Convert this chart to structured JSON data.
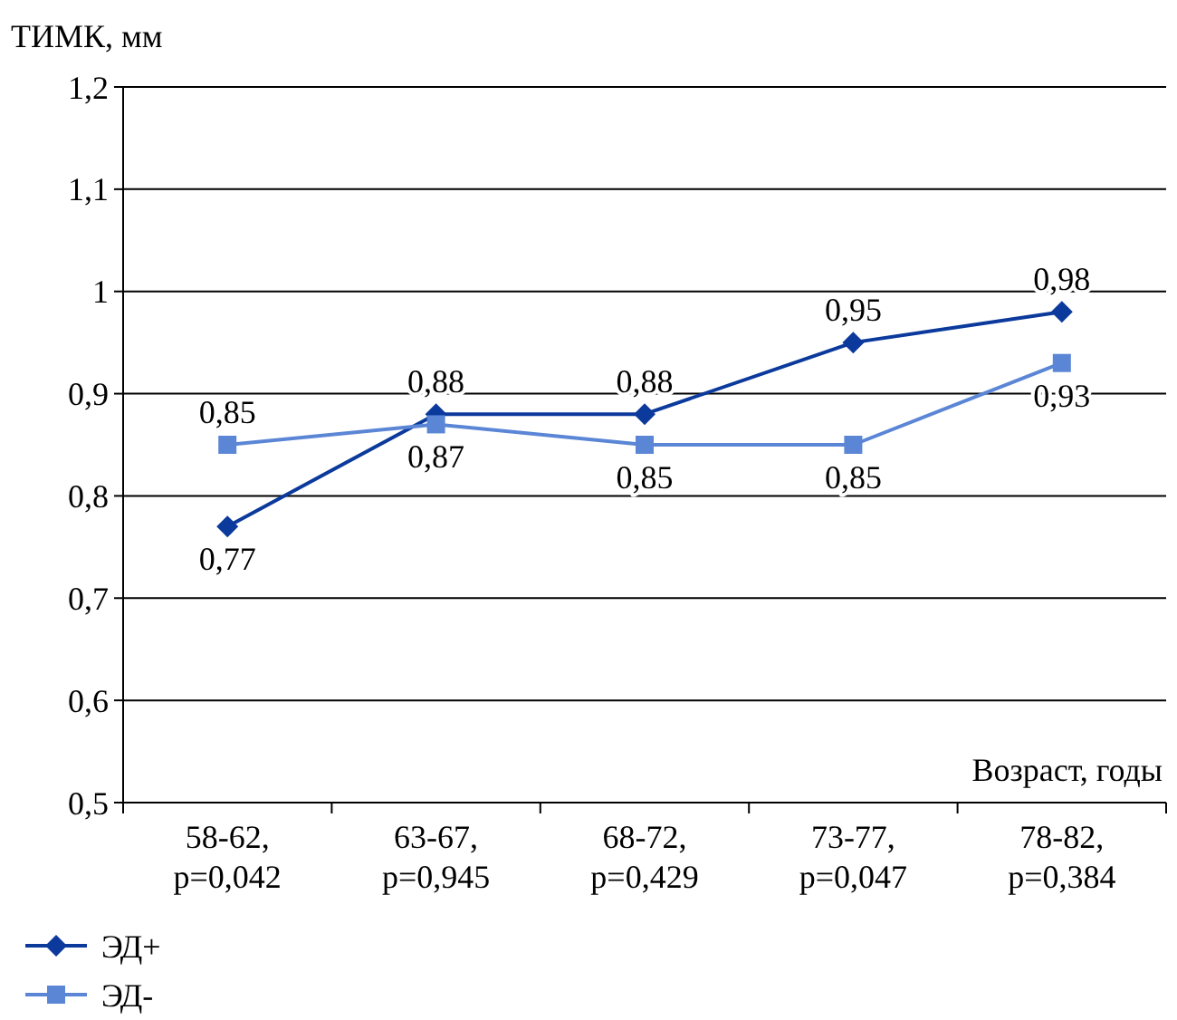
{
  "chart_data": {
    "type": "line",
    "ylabel": "ТИМК, мм",
    "xlabel": "Возраст, годы",
    "categories": [
      "58-62, p=0,042",
      "63-67, p=0,945",
      "68-72, p=0,429",
      "73-77, p=0,047",
      "78-82, p=0,384"
    ],
    "ylim": [
      0.5,
      1.2
    ],
    "yticks": [
      {
        "value": 0.5,
        "label": "0,5"
      },
      {
        "value": 0.6,
        "label": "0,6"
      },
      {
        "value": 0.7,
        "label": "0,7"
      },
      {
        "value": 0.8,
        "label": "0,8"
      },
      {
        "value": 0.9,
        "label": "0,9"
      },
      1,
      {
        "value": 1.1,
        "label": "1,1"
      },
      {
        "value": 1.2,
        "label": "1,2"
      }
    ],
    "grid": "y",
    "legend": "bottom left",
    "line_style": "solid",
    "series": [
      {
        "name": "ЭД+",
        "color": "#0b3a9c",
        "marker": "diamond",
        "values": [
          0.77,
          0.88,
          0.88,
          0.95,
          0.98
        ],
        "value_labels": [
          "0,77",
          "0,88",
          "0,88",
          "0,95",
          "0,98"
        ]
      },
      {
        "name": "ЭД-",
        "color": "#5b86d6",
        "marker": "square",
        "values": [
          0.85,
          0.87,
          0.85,
          0.85,
          0.93
        ],
        "value_labels": [
          "0,85",
          "0,87",
          "0,85",
          "0,85",
          "0,93"
        ]
      }
    ]
  }
}
